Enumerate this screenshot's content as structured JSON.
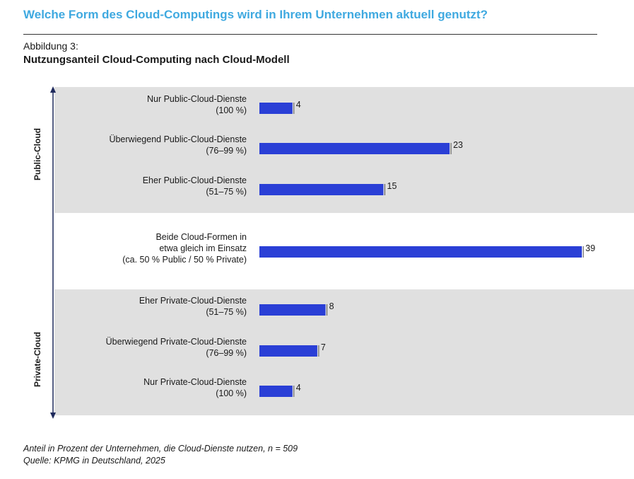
{
  "header": {
    "question": "Welche Form des Cloud-Computings wird in Ihrem Unternehmen aktuell genutzt?",
    "figure_label": "Abbildung 3:",
    "figure_title": "Nutzungsanteil Cloud-Computing nach Cloud-Modell"
  },
  "colors": {
    "bar": "#2a3fd6",
    "band": "#e0e0e0",
    "question": "#3fa9e0"
  },
  "chart_data": {
    "type": "bar",
    "orientation": "horizontal",
    "categories": [
      [
        "Nur Public-Cloud-Dienste",
        "(100 %)"
      ],
      [
        "Überwiegend Public-Cloud-Dienste",
        "(76–99 %)"
      ],
      [
        "Eher Public-Cloud-Dienste",
        "(51–75 %)"
      ],
      [
        "Beide Cloud-Formen in",
        "etwa gleich im Einsatz",
        "(ca. 50 % Public / 50 % Private)"
      ],
      [
        "Eher Private-Cloud-Dienste",
        "(51–75 %)"
      ],
      [
        "Überwiegend Private-Cloud-Dienste",
        "(76–99 %)"
      ],
      [
        "Nur Private-Cloud-Dienste",
        "(100 %)"
      ]
    ],
    "values": [
      4,
      23,
      15,
      39,
      8,
      7,
      4
    ],
    "axis_groups": [
      "Public-Cloud",
      "Private-Cloud"
    ],
    "grid": false
  },
  "footer": {
    "note": "Anteil in Prozent der Unternehmen, die Cloud-Dienste nutzen, n = 509",
    "source": "Quelle: KPMG in Deutschland, 2025"
  }
}
